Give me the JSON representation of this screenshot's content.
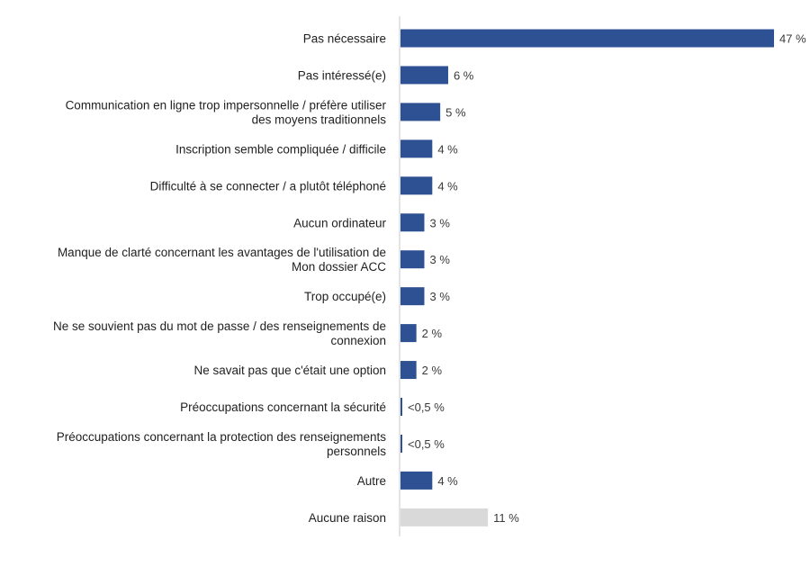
{
  "chart_data": {
    "type": "bar",
    "orientation": "horizontal",
    "title": "",
    "xlabel": "",
    "ylabel": "",
    "grid": false,
    "xlim": [
      0,
      50
    ],
    "colors": {
      "primary": "#2E5193",
      "secondary": "#D9D9D9",
      "axis": "#C8C8C8"
    },
    "categories": [
      {
        "label": [
          "Pas nécessaire"
        ],
        "value": 47,
        "display": "47 %",
        "color": "#2E5193"
      },
      {
        "label": [
          "Pas intéressé(e)"
        ],
        "value": 6,
        "display": "6 %",
        "color": "#2E5193"
      },
      {
        "label": [
          "Communication en ligne trop impersonnelle / préfère utiliser",
          "des moyens traditionnels"
        ],
        "value": 5,
        "display": "5 %",
        "color": "#2E5193"
      },
      {
        "label": [
          "Inscription semble compliquée / difficile"
        ],
        "value": 4,
        "display": "4 %",
        "color": "#2E5193"
      },
      {
        "label": [
          "Difficulté à se connecter / a plutôt téléphoné"
        ],
        "value": 4,
        "display": "4 %",
        "color": "#2E5193"
      },
      {
        "label": [
          "Aucun ordinateur"
        ],
        "value": 3,
        "display": "3 %",
        "color": "#2E5193"
      },
      {
        "label": [
          "Manque de clarté concernant les avantages de l'utilisation de",
          "Mon dossier ACC"
        ],
        "value": 3,
        "display": "3 %",
        "color": "#2E5193"
      },
      {
        "label": [
          "Trop occupé(e)"
        ],
        "value": 3,
        "display": "3 %",
        "color": "#2E5193"
      },
      {
        "label": [
          "Ne se souvient pas du mot de passe / des renseignements de",
          "connexion"
        ],
        "value": 2,
        "display": "2 %",
        "color": "#2E5193"
      },
      {
        "label": [
          "Ne savait pas que c'était une option"
        ],
        "value": 2,
        "display": "2 %",
        "color": "#2E5193"
      },
      {
        "label": [
          "Préoccupations concernant la sécurité"
        ],
        "value": 0.2,
        "display": "<0,5 %",
        "color": "#2E5193"
      },
      {
        "label": [
          "Préoccupations concernant la protection des renseignements",
          "personnels"
        ],
        "value": 0.2,
        "display": "<0,5 %",
        "color": "#2E5193"
      },
      {
        "label": [
          "Autre"
        ],
        "value": 4,
        "display": "4 %",
        "color": "#2E5193"
      },
      {
        "label": [
          "Aucune raison"
        ],
        "value": 11,
        "display": "11 %",
        "color": "#D9D9D9"
      }
    ]
  }
}
